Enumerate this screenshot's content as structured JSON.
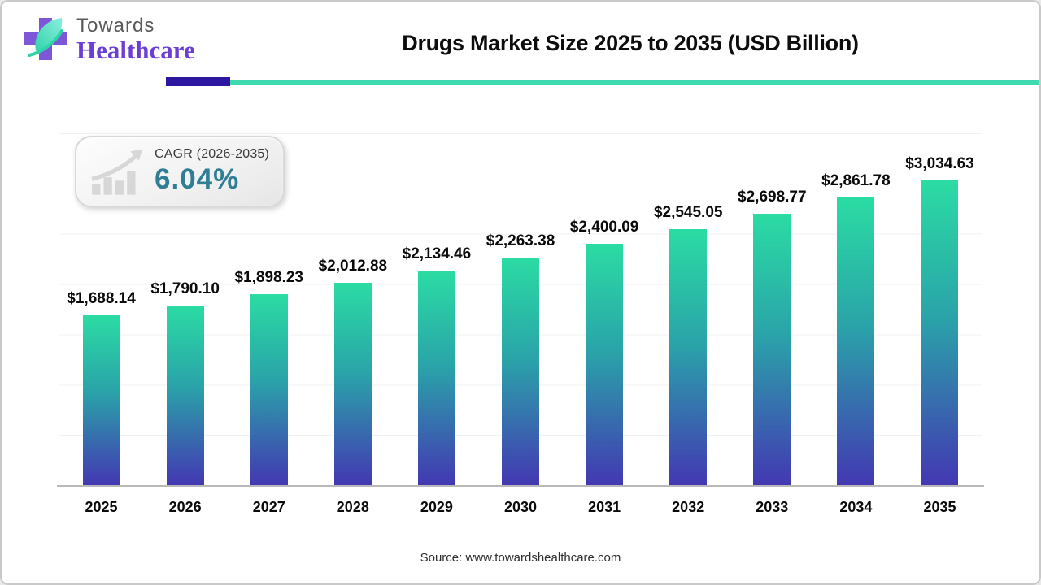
{
  "logo": {
    "line1": "Towards",
    "line2": "Healthcare"
  },
  "header": {
    "title": "Drugs Market Size 2025 to 2035 (USD Billion)"
  },
  "cagr_badge": {
    "label": "CAGR (2026-2035)",
    "value": "6.04%",
    "icon": "growth-trend-bar-chart-icon"
  },
  "footer": {
    "source": "Source: www.towardshealthcare.com"
  },
  "colors": {
    "bar_top": "#2bdca3",
    "bar_bottom": "#4338b2",
    "header_line_teal": "#3ed9ad",
    "header_line_indigo": "#2d16a0",
    "cagr_value": "#2f7e94",
    "logo_purple": "#6b3fd4",
    "leaf_teal": "#3fd6b4",
    "baseline_gray": "#b9b9b9",
    "gridline": "#f1f1f1"
  },
  "chart_data": {
    "type": "bar",
    "title": "Drugs Market Size 2025 to 2035 (USD Billion)",
    "categories": [
      "2025",
      "2026",
      "2027",
      "2028",
      "2029",
      "2030",
      "2031",
      "2032",
      "2033",
      "2034",
      "2035"
    ],
    "values": [
      1688.14,
      1790.1,
      1898.23,
      2012.88,
      2134.46,
      2263.38,
      2400.09,
      2545.05,
      2698.77,
      2861.78,
      3034.63
    ],
    "value_labels": [
      "$1,688.14",
      "$1,790.10",
      "$1,898.23",
      "$2,012.88",
      "$2,134.46",
      "$2,263.38",
      "$2,400.09",
      "$2,545.05",
      "$2,698.77",
      "$2,861.78",
      "$3,034.63"
    ],
    "xlabel": "",
    "ylabel": "",
    "ylim": [
      0,
      3500
    ],
    "gridlines": {
      "orientation": "horizontal",
      "interval": 500,
      "visible": true
    },
    "legend": "none",
    "bar_gradient": [
      "#2bdca3",
      "#4338b2"
    ]
  }
}
